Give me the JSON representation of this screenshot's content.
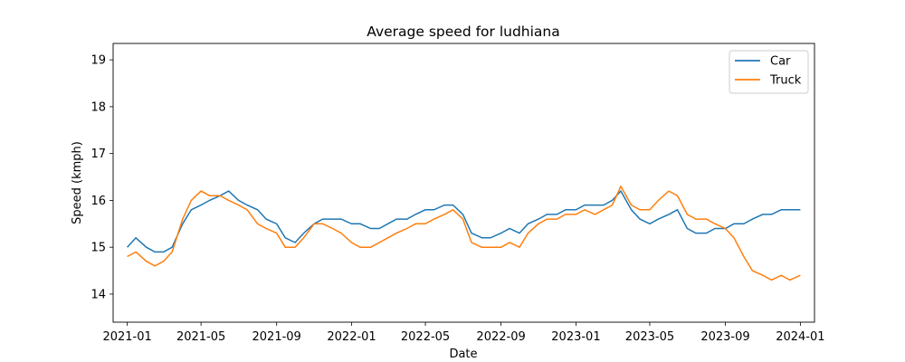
{
  "chart_data": {
    "type": "line",
    "title": "Average speed for ludhiana",
    "xlabel": "Date",
    "ylabel": "Speed (kmph)",
    "xlim": [
      "2020-12-09",
      "2024-01-24"
    ],
    "ylim": [
      13.4,
      19.35
    ],
    "x_ticks": [
      "2021-01",
      "2021-05",
      "2021-09",
      "2022-01",
      "2022-05",
      "2022-09",
      "2023-01",
      "2023-05",
      "2023-09",
      "2024-01"
    ],
    "y_ticks": [
      14,
      15,
      16,
      17,
      18,
      19
    ],
    "grid": false,
    "legend": "top-right",
    "series": [
      {
        "name": "Car",
        "color": "#1f77b4",
        "x": [
          "2021-01-01",
          "2021-01-15",
          "2021-02-01",
          "2021-02-15",
          "2021-03-01",
          "2021-03-15",
          "2021-04-01",
          "2021-04-15",
          "2021-05-01",
          "2021-05-15",
          "2021-06-01",
          "2021-06-15",
          "2021-07-01",
          "2021-07-15",
          "2021-08-01",
          "2021-08-15",
          "2021-09-01",
          "2021-09-15",
          "2021-10-01",
          "2021-10-15",
          "2021-11-01",
          "2021-11-15",
          "2021-12-01",
          "2021-12-15",
          "2022-01-01",
          "2022-01-15",
          "2022-02-01",
          "2022-02-15",
          "2022-03-01",
          "2022-03-15",
          "2022-04-01",
          "2022-04-15",
          "2022-05-01",
          "2022-05-15",
          "2022-06-01",
          "2022-06-15",
          "2022-07-01",
          "2022-07-15",
          "2022-08-01",
          "2022-08-15",
          "2022-09-01",
          "2022-09-15",
          "2022-10-01",
          "2022-10-15",
          "2022-11-01",
          "2022-11-15",
          "2022-12-01",
          "2022-12-15",
          "2023-01-01",
          "2023-01-15",
          "2023-02-01",
          "2023-02-15",
          "2023-03-01",
          "2023-03-15",
          "2023-04-01",
          "2023-04-15",
          "2023-05-01",
          "2023-05-15",
          "2023-06-01",
          "2023-06-15",
          "2023-07-01",
          "2023-07-15",
          "2023-08-01",
          "2023-08-15",
          "2023-09-01",
          "2023-09-15",
          "2023-10-01",
          "2023-10-15",
          "2023-11-01",
          "2023-11-15",
          "2023-12-01",
          "2023-12-15",
          "2024-01-01"
        ],
        "values": [
          15.0,
          15.2,
          15.0,
          14.9,
          14.9,
          15.0,
          15.5,
          15.8,
          15.9,
          16.0,
          16.1,
          16.2,
          16.0,
          15.9,
          15.8,
          15.6,
          15.5,
          15.2,
          15.1,
          15.3,
          15.5,
          15.6,
          15.6,
          15.6,
          15.5,
          15.5,
          15.4,
          15.4,
          15.5,
          15.6,
          15.6,
          15.7,
          15.8,
          15.8,
          15.9,
          15.9,
          15.7,
          15.3,
          15.2,
          15.2,
          15.3,
          15.4,
          15.3,
          15.5,
          15.6,
          15.7,
          15.7,
          15.8,
          15.8,
          15.9,
          15.9,
          15.9,
          16.0,
          16.2,
          15.8,
          15.6,
          15.5,
          15.6,
          15.7,
          15.8,
          15.4,
          15.3,
          15.3,
          15.4,
          15.4,
          15.5,
          15.5,
          15.6,
          15.7,
          15.7,
          15.8,
          15.8,
          15.8
        ]
      },
      {
        "name": "Truck",
        "color": "#ff7f0e",
        "x": [
          "2021-01-01",
          "2021-01-15",
          "2021-02-01",
          "2021-02-15",
          "2021-03-01",
          "2021-03-15",
          "2021-04-01",
          "2021-04-15",
          "2021-05-01",
          "2021-05-15",
          "2021-06-01",
          "2021-06-15",
          "2021-07-01",
          "2021-07-15",
          "2021-08-01",
          "2021-08-15",
          "2021-09-01",
          "2021-09-15",
          "2021-10-01",
          "2021-10-15",
          "2021-11-01",
          "2021-11-15",
          "2021-12-01",
          "2021-12-15",
          "2022-01-01",
          "2022-01-15",
          "2022-02-01",
          "2022-02-15",
          "2022-03-01",
          "2022-03-15",
          "2022-04-01",
          "2022-04-15",
          "2022-05-01",
          "2022-05-15",
          "2022-06-01",
          "2022-06-15",
          "2022-07-01",
          "2022-07-15",
          "2022-08-01",
          "2022-08-15",
          "2022-09-01",
          "2022-09-15",
          "2022-10-01",
          "2022-10-15",
          "2022-11-01",
          "2022-11-15",
          "2022-12-01",
          "2022-12-15",
          "2023-01-01",
          "2023-01-15",
          "2023-02-01",
          "2023-02-15",
          "2023-03-01",
          "2023-03-15",
          "2023-04-01",
          "2023-04-15",
          "2023-05-01",
          "2023-05-15",
          "2023-06-01",
          "2023-06-15",
          "2023-07-01",
          "2023-07-15",
          "2023-08-01",
          "2023-08-15",
          "2023-09-01",
          "2023-09-15",
          "2023-10-01",
          "2023-10-15",
          "2023-11-01",
          "2023-11-15",
          "2023-12-01",
          "2023-12-15",
          "2024-01-01"
        ],
        "values": [
          14.8,
          14.9,
          14.7,
          14.6,
          14.7,
          14.9,
          15.6,
          16.0,
          16.2,
          16.1,
          16.1,
          16.0,
          15.9,
          15.8,
          15.5,
          15.4,
          15.3,
          15.0,
          15.0,
          15.2,
          15.5,
          15.5,
          15.4,
          15.3,
          15.1,
          15.0,
          15.0,
          15.1,
          15.2,
          15.3,
          15.4,
          15.5,
          15.5,
          15.6,
          15.7,
          15.8,
          15.6,
          15.1,
          15.0,
          15.0,
          15.0,
          15.1,
          15.0,
          15.3,
          15.5,
          15.6,
          15.6,
          15.7,
          15.7,
          15.8,
          15.7,
          15.8,
          15.9,
          16.3,
          15.9,
          15.8,
          15.8,
          16.0,
          16.2,
          16.1,
          15.7,
          15.6,
          15.6,
          15.5,
          15.4,
          15.2,
          14.8,
          14.5,
          14.4,
          14.3,
          14.4,
          14.3,
          14.4
        ]
      }
    ]
  }
}
